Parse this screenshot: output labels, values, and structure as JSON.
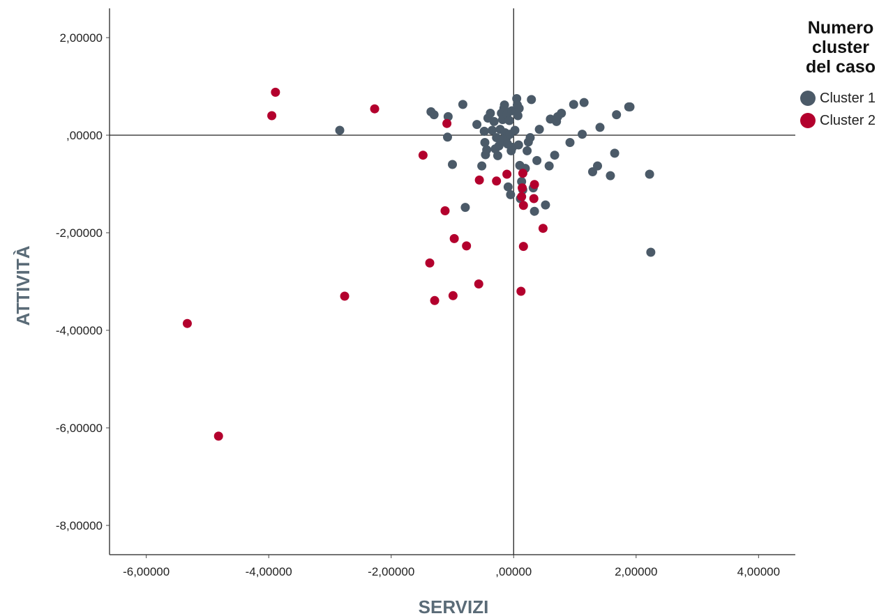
{
  "legend": {
    "title_lines": [
      "Numero",
      "cluster",
      "del caso"
    ],
    "items": [
      {
        "label": "Cluster 1",
        "color": "#4b5a68"
      },
      {
        "label": "Cluster 2",
        "color": "#b3002d"
      }
    ]
  },
  "chart_data": {
    "type": "scatter",
    "title": "",
    "xlabel": "SERVIZI",
    "ylabel": "ATTIVITÀ",
    "xlim": [
      -6.6,
      4.6
    ],
    "ylim": [
      -8.6,
      2.6
    ],
    "x_ticks": [
      -6,
      -4,
      -2,
      0,
      2,
      4
    ],
    "y_ticks": [
      -8,
      -6,
      -4,
      -2,
      0,
      2
    ],
    "x_tick_labels": [
      "-6,00000",
      "-4,00000",
      "-2,00000",
      ",00000",
      "2,00000",
      "4,00000"
    ],
    "y_tick_labels": [
      "-8,00000",
      "-6,00000",
      "-4,00000",
      "-2,00000",
      ",00000",
      "2,00000"
    ],
    "reference_lines": {
      "x": 0,
      "y": 0
    },
    "grid": false,
    "legend_position": "top-right",
    "series": [
      {
        "name": "Cluster 1",
        "color": "#4b5a68",
        "points": [
          [
            -2.84,
            0.1
          ],
          [
            -1.35,
            0.48
          ],
          [
            -1.3,
            0.42
          ],
          [
            -1.07,
            0.38
          ],
          [
            -1.08,
            -0.04
          ],
          [
            -1.0,
            -0.6
          ],
          [
            -0.83,
            0.63
          ],
          [
            -0.79,
            -1.48
          ],
          [
            -0.6,
            0.22
          ],
          [
            -0.52,
            -0.63
          ],
          [
            -0.48,
            0.08
          ],
          [
            -0.47,
            -0.15
          ],
          [
            -0.46,
            -0.4
          ],
          [
            -0.44,
            -0.3
          ],
          [
            -0.42,
            0.35
          ],
          [
            -0.38,
            0.45
          ],
          [
            -0.35,
            0.1
          ],
          [
            -0.32,
            0.28
          ],
          [
            -0.3,
            -0.28
          ],
          [
            -0.28,
            -0.05
          ],
          [
            -0.26,
            -0.42
          ],
          [
            -0.24,
            -0.22
          ],
          [
            -0.22,
            0.12
          ],
          [
            -0.2,
            0.45
          ],
          [
            -0.19,
            -0.1
          ],
          [
            -0.18,
            0.32
          ],
          [
            -0.16,
            0.55
          ],
          [
            -0.15,
            0.62
          ],
          [
            -0.14,
            0.05
          ],
          [
            -0.12,
            -0.06
          ],
          [
            -0.11,
            0.42
          ],
          [
            -0.1,
            -0.18
          ],
          [
            -0.09,
            -1.06
          ],
          [
            -0.07,
            0.3
          ],
          [
            -0.06,
            0.02
          ],
          [
            -0.05,
            -1.22
          ],
          [
            -0.04,
            -0.32
          ],
          [
            -0.03,
            0.5
          ],
          [
            -0.02,
            -0.25
          ],
          [
            0.02,
            0.1
          ],
          [
            0.04,
            0.48
          ],
          [
            0.05,
            0.75
          ],
          [
            0.06,
            0.62
          ],
          [
            0.07,
            0.4
          ],
          [
            0.08,
            -0.2
          ],
          [
            0.09,
            0.55
          ],
          [
            0.1,
            -0.62
          ],
          [
            0.11,
            -1.3
          ],
          [
            0.13,
            -0.95
          ],
          [
            0.15,
            -1.12
          ],
          [
            0.19,
            -0.68
          ],
          [
            0.22,
            -0.32
          ],
          [
            0.24,
            -0.14
          ],
          [
            0.27,
            -0.05
          ],
          [
            0.29,
            0.73
          ],
          [
            0.32,
            -1.08
          ],
          [
            0.34,
            -1.56
          ],
          [
            0.38,
            -0.52
          ],
          [
            0.42,
            0.12
          ],
          [
            0.52,
            -1.43
          ],
          [
            0.58,
            -0.63
          ],
          [
            0.6,
            0.33
          ],
          [
            0.67,
            -0.41
          ],
          [
            0.7,
            0.28
          ],
          [
            0.72,
            0.38
          ],
          [
            0.78,
            0.45
          ],
          [
            0.92,
            -0.15
          ],
          [
            0.98,
            0.63
          ],
          [
            1.12,
            0.02
          ],
          [
            1.15,
            0.67
          ],
          [
            1.29,
            -0.75
          ],
          [
            1.37,
            -0.63
          ],
          [
            1.41,
            0.16
          ],
          [
            1.58,
            -0.83
          ],
          [
            1.65,
            -0.37
          ],
          [
            1.68,
            0.42
          ],
          [
            1.88,
            0.58
          ],
          [
            1.9,
            0.58
          ],
          [
            2.22,
            -0.8
          ],
          [
            2.24,
            -2.4
          ]
        ]
      },
      {
        "name": "Cluster 2",
        "color": "#b3002d",
        "points": [
          [
            -5.33,
            -3.86
          ],
          [
            -4.82,
            -6.17
          ],
          [
            -3.89,
            0.88
          ],
          [
            -3.95,
            0.4
          ],
          [
            -2.76,
            -3.3
          ],
          [
            -2.27,
            0.54
          ],
          [
            -1.48,
            -0.41
          ],
          [
            -1.37,
            -2.62
          ],
          [
            -1.29,
            -3.39
          ],
          [
            -1.12,
            -1.55
          ],
          [
            -1.09,
            0.24
          ],
          [
            -0.99,
            -3.29
          ],
          [
            -0.97,
            -2.12
          ],
          [
            -0.77,
            -2.27
          ],
          [
            -0.57,
            -3.05
          ],
          [
            -0.56,
            -0.92
          ],
          [
            -0.28,
            -0.94
          ],
          [
            -0.11,
            -0.8
          ],
          [
            0.12,
            -3.2
          ],
          [
            0.13,
            -1.26
          ],
          [
            0.14,
            -1.08
          ],
          [
            0.15,
            -0.78
          ],
          [
            0.16,
            -1.44
          ],
          [
            0.16,
            -2.28
          ],
          [
            0.33,
            -1.3
          ],
          [
            0.34,
            -1.01
          ],
          [
            0.48,
            -1.91
          ]
        ]
      }
    ]
  }
}
